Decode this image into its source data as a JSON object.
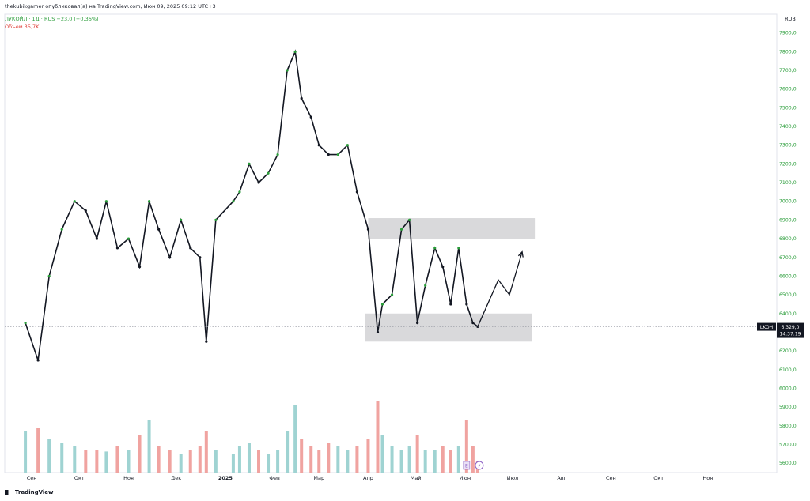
{
  "header": {
    "author_line": "thekubikgamer опубликовал(а) на TradingView.com, Июн 09, 2025 09:12 UTC+3",
    "symbol_line": "ЛУКОЙЛ · 1Д · RUS  −23,0 (−0,36%)",
    "volume_line": "Объем  35,7K"
  },
  "footer": {
    "logo_text": "TradingView"
  },
  "colors": {
    "up": "#2a9d3a",
    "down": "#131722",
    "vol_up": "#9fd3d2",
    "vol_down": "#f0a3a0",
    "zone": "#d7d7d9",
    "price_line": "#9598a1",
    "price_tag_bg": "#131722",
    "time_tag_bg": "#131722"
  },
  "chart_data": {
    "type": "line",
    "title": "ЛУКОЙЛ · 1Д · RUS",
    "currency": "RUB",
    "y_range": [
      5550,
      8000
    ],
    "y_ticks": [
      "5600,0",
      "5700,0",
      "5800,0",
      "5900,0",
      "6000,0",
      "6100,0",
      "6200,0",
      "6300,0",
      "6400,0",
      "6500,0",
      "6600,0",
      "6700,0",
      "6800,0",
      "6900,0",
      "7000,0",
      "7100,0",
      "7200,0",
      "7300,0",
      "7400,0",
      "7500,0",
      "7600,0",
      "7700,0",
      "7800,0",
      "7900,0"
    ],
    "y_tick_values": [
      5600,
      5700,
      5800,
      5900,
      6000,
      6100,
      6200,
      6300,
      6400,
      6500,
      6600,
      6700,
      6800,
      6900,
      7000,
      7100,
      7200,
      7300,
      7400,
      7500,
      7600,
      7700,
      7800,
      7900
    ],
    "x_labels": [
      "Сен",
      "Окт",
      "Ноя",
      "Дек",
      "2025",
      "Фев",
      "Мар",
      "Апр",
      "Май",
      "Июн",
      "Июл",
      "Авг",
      "Сен",
      "Окт",
      "Ноя"
    ],
    "series": [
      {
        "name": "ЛУКОЙЛ",
        "dates": [
          "2024-08-28",
          "2024-09-05",
          "2024-09-12",
          "2024-09-20",
          "2024-09-28",
          "2024-10-05",
          "2024-10-12",
          "2024-10-18",
          "2024-10-25",
          "2024-11-01",
          "2024-11-08",
          "2024-11-14",
          "2024-11-20",
          "2024-11-27",
          "2024-12-04",
          "2024-12-10",
          "2024-12-16",
          "2024-12-20",
          "2024-12-26",
          "2025-01-06",
          "2025-01-10",
          "2025-01-16",
          "2025-01-22",
          "2025-01-28",
          "2025-02-03",
          "2025-02-09",
          "2025-02-14",
          "2025-02-18",
          "2025-02-24",
          "2025-03-01",
          "2025-03-07",
          "2025-03-13",
          "2025-03-19",
          "2025-03-25",
          "2025-04-01",
          "2025-04-07",
          "2025-04-10",
          "2025-04-16",
          "2025-04-22",
          "2025-04-27",
          "2025-05-02",
          "2025-05-07",
          "2025-05-13",
          "2025-05-18",
          "2025-05-23",
          "2025-05-28",
          "2025-06-02",
          "2025-06-06",
          "2025-06-09"
        ],
        "close": [
          6350,
          6150,
          6600,
          6850,
          7000,
          6950,
          6800,
          7000,
          6750,
          6800,
          6650,
          7000,
          6850,
          6700,
          6900,
          6750,
          6700,
          6250,
          6900,
          7000,
          7050,
          7200,
          7100,
          7150,
          7250,
          7700,
          7800,
          7550,
          7450,
          7300,
          7250,
          7250,
          7300,
          7050,
          6850,
          6300,
          6450,
          6500,
          6850,
          6900,
          6350,
          6550,
          6750,
          6650,
          6450,
          6750,
          6450,
          6350,
          6330
        ]
      }
    ],
    "last_price": {
      "symbol": "LKOH",
      "value": "6 329,0",
      "time": "14:37:19"
    },
    "annotations": {
      "resistance_zone": {
        "low": 6800,
        "high": 6910,
        "from": "2025-04-01",
        "to": "2025-07-15"
      },
      "support_zone": {
        "low": 6250,
        "high": 6400,
        "from": "2025-03-30",
        "to": "2025-07-13"
      },
      "forecast_path": [
        {
          "date": "2025-06-09",
          "value": 6330
        },
        {
          "date": "2025-06-22",
          "value": 6580
        },
        {
          "date": "2025-06-29",
          "value": 6500
        },
        {
          "date": "2025-07-07",
          "value": 6730
        }
      ]
    }
  },
  "volume_data": {
    "dates": [
      "2024-08-28",
      "2024-09-05",
      "2024-09-12",
      "2024-09-20",
      "2024-09-28",
      "2024-10-05",
      "2024-10-12",
      "2024-10-18",
      "2024-10-25",
      "2024-11-01",
      "2024-11-08",
      "2024-11-14",
      "2024-11-20",
      "2024-11-27",
      "2024-12-04",
      "2024-12-10",
      "2024-12-16",
      "2024-12-20",
      "2024-12-26",
      "2025-01-06",
      "2025-01-10",
      "2025-01-16",
      "2025-01-22",
      "2025-01-28",
      "2025-02-03",
      "2025-02-09",
      "2025-02-14",
      "2025-02-18",
      "2025-02-24",
      "2025-03-01",
      "2025-03-07",
      "2025-03-13",
      "2025-03-19",
      "2025-03-25",
      "2025-04-01",
      "2025-04-07",
      "2025-04-10",
      "2025-04-16",
      "2025-04-22",
      "2025-04-27",
      "2025-05-02",
      "2025-05-07",
      "2025-05-13",
      "2025-05-18",
      "2025-05-23",
      "2025-05-28",
      "2025-06-02",
      "2025-06-06",
      "2025-06-09"
    ],
    "relative": [
      0.55,
      0.6,
      0.45,
      0.4,
      0.35,
      0.3,
      0.3,
      0.28,
      0.35,
      0.3,
      0.5,
      0.7,
      0.35,
      0.3,
      0.25,
      0.3,
      0.35,
      0.55,
      0.3,
      0.25,
      0.35,
      0.4,
      0.3,
      0.25,
      0.3,
      0.55,
      0.9,
      0.45,
      0.35,
      0.3,
      0.4,
      0.35,
      0.3,
      0.35,
      0.45,
      0.95,
      0.5,
      0.35,
      0.3,
      0.35,
      0.5,
      0.3,
      0.3,
      0.35,
      0.3,
      0.35,
      0.7,
      0.35,
      0.15
    ]
  },
  "markers": {
    "earnings": "E",
    "dividend": "⚡"
  }
}
